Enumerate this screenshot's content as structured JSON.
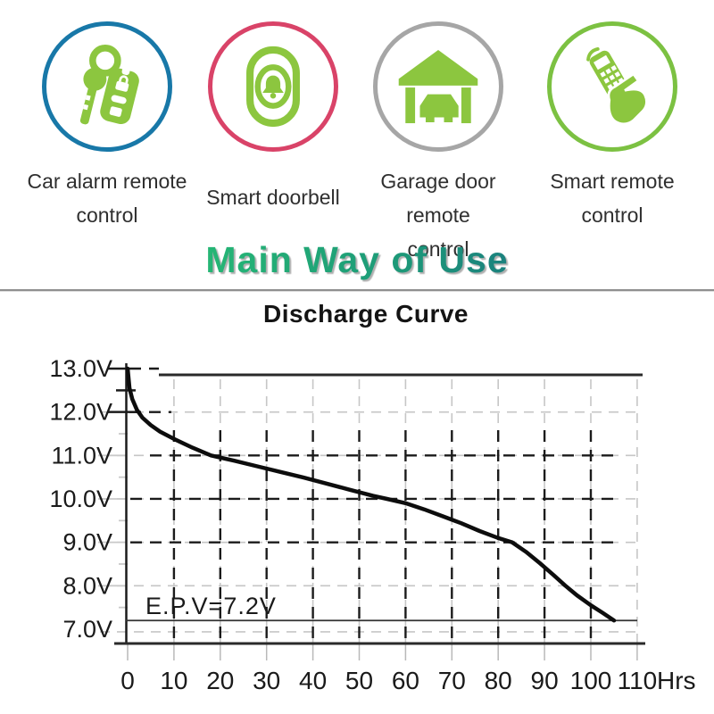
{
  "icon_color": "#8cc63f",
  "section_title": "Main Way of Use",
  "title_gradient": [
    "#2bc873",
    "#1d9a78",
    "#175e86"
  ],
  "features": [
    {
      "name": "car-alarm-remote-control",
      "ring_color": "#1878a8",
      "icon": "car-keys",
      "lines": [
        "Car alarm remote",
        "control"
      ]
    },
    {
      "name": "smart-doorbell",
      "ring_color": "#d94368",
      "icon": "doorbell",
      "lines": [
        "Smart doorbell"
      ]
    },
    {
      "name": "garage-door-remote",
      "ring_color": "#a6a6a6",
      "icon": "garage-door",
      "lines": [
        "Garage door remote",
        "control"
      ]
    },
    {
      "name": "smart-remote-control",
      "ring_color": "#7cc142",
      "icon": "smart-remote",
      "lines": [
        "Smart remote",
        "control"
      ]
    }
  ],
  "chart_data": {
    "type": "line",
    "title": "Discharge Curve",
    "xlabel_unit": "Hrs",
    "xlim": [
      0,
      110
    ],
    "ylim": [
      7.0,
      13.0
    ],
    "grid": "dashed",
    "legend": "none",
    "x_ticks": [
      0,
      10,
      20,
      30,
      40,
      50,
      60,
      70,
      80,
      90,
      100,
      110
    ],
    "y_ticks": [
      {
        "value": 13.0,
        "label": "13.0V"
      },
      {
        "value": 12.0,
        "label": "12.0V"
      },
      {
        "value": 11.0,
        "label": "11.0V"
      },
      {
        "value": 10.0,
        "label": "10.0V"
      },
      {
        "value": 9.0,
        "label": "9.0V"
      },
      {
        "value": 8.0,
        "label": "8.0V"
      },
      {
        "value": 7.0,
        "label": "7.0V"
      }
    ],
    "annotation": "E.P.V=7.2V",
    "end_point_voltage": 7.2,
    "series": [
      {
        "name": "battery-discharge-curve",
        "points": [
          [
            0,
            13.0
          ],
          [
            0.4,
            12.55
          ],
          [
            1,
            12.3
          ],
          [
            2,
            12.05
          ],
          [
            3.2,
            11.87
          ],
          [
            5,
            11.7
          ],
          [
            7,
            11.55
          ],
          [
            10,
            11.38
          ],
          [
            14,
            11.18
          ],
          [
            18,
            11.0
          ],
          [
            23,
            10.88
          ],
          [
            28,
            10.75
          ],
          [
            33,
            10.62
          ],
          [
            38,
            10.49
          ],
          [
            43,
            10.35
          ],
          [
            48,
            10.21
          ],
          [
            53,
            10.07
          ],
          [
            56,
            10.0
          ],
          [
            60,
            9.9
          ],
          [
            64,
            9.76
          ],
          [
            68,
            9.6
          ],
          [
            72,
            9.44
          ],
          [
            76,
            9.26
          ],
          [
            80,
            9.1
          ],
          [
            83,
            9.0
          ],
          [
            86,
            8.78
          ],
          [
            89,
            8.52
          ],
          [
            92,
            8.24
          ],
          [
            94.5,
            8.0
          ],
          [
            97,
            7.78
          ],
          [
            100,
            7.55
          ],
          [
            102.5,
            7.38
          ],
          [
            105,
            7.2
          ]
        ]
      }
    ]
  }
}
